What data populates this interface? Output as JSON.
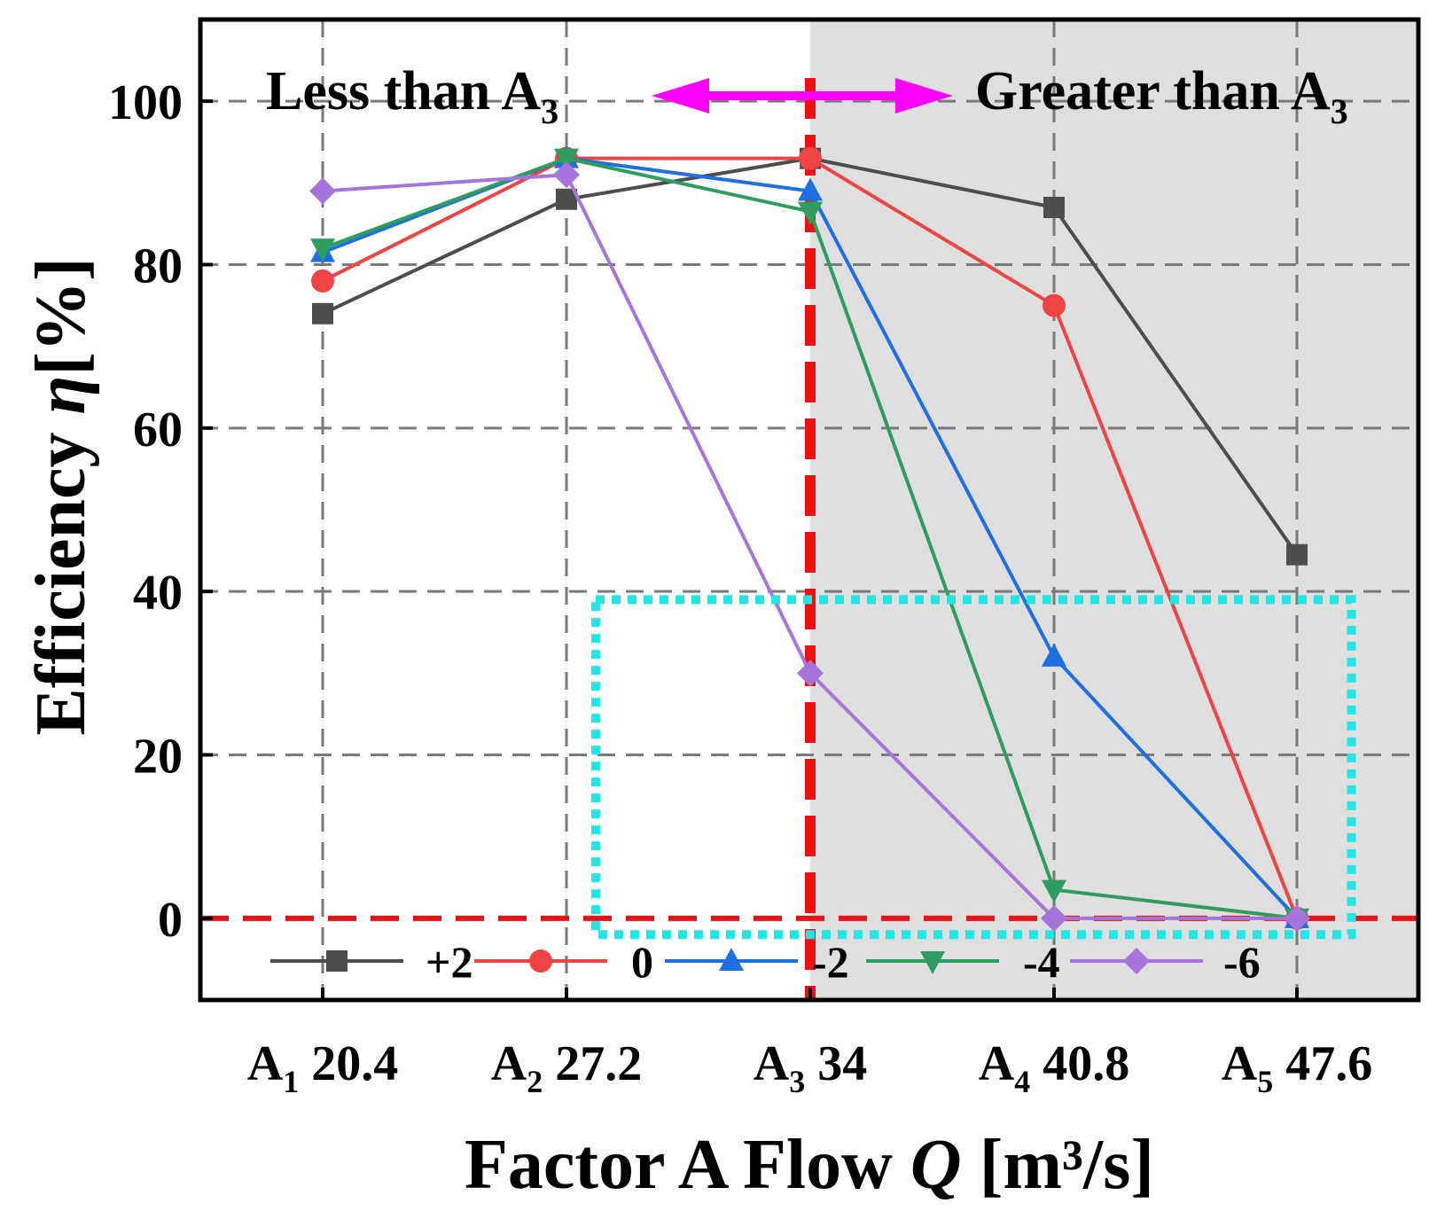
{
  "chart_data": {
    "type": "line",
    "title": "",
    "xlabel": {
      "text": "Factor A Flow ",
      "var": "Q",
      "unit": " [m³/s]"
    },
    "ylabel": {
      "text": "Efficiency ",
      "var": "η",
      "unit": "[%]"
    },
    "ylim": [
      -10,
      110
    ],
    "yticks": [
      0,
      20,
      40,
      60,
      80,
      100
    ],
    "categories": [
      {
        "letter": "A",
        "sub": "1",
        "value": "20.4"
      },
      {
        "letter": "A",
        "sub": "2",
        "value": "27.2"
      },
      {
        "letter": "A",
        "sub": "3",
        "value": "34"
      },
      {
        "letter": "A",
        "sub": "4",
        "value": "40.8"
      },
      {
        "letter": "A",
        "sub": "5",
        "value": "47.6"
      }
    ],
    "series": [
      {
        "name": "+2",
        "color": "#4d4d4d",
        "marker": "square",
        "values": [
          74,
          88,
          93,
          87,
          44.5
        ]
      },
      {
        "name": "0",
        "color": "#ee4444",
        "marker": "circle",
        "values": [
          78,
          93,
          93,
          75,
          0
        ]
      },
      {
        "name": "-2",
        "color": "#1e6fe0",
        "marker": "triangle-up",
        "values": [
          81.5,
          93,
          89,
          32,
          0
        ]
      },
      {
        "name": "-4",
        "color": "#2e9d5f",
        "marker": "triangle-down",
        "values": [
          82,
          93,
          86.5,
          3.5,
          0
        ]
      },
      {
        "name": "-6",
        "color": "#a675dc",
        "marker": "diamond",
        "values": [
          89,
          91,
          30,
          0,
          0
        ]
      }
    ],
    "grid": true,
    "legend_position": "bottom-inside",
    "annotations": {
      "left_text": {
        "main": "Less than A",
        "sub": "3"
      },
      "right_text": {
        "main": "Greater than A",
        "sub": "3"
      },
      "vertical_line_category": 2,
      "horizontal_line_value": 0,
      "shaded_region": "right of A3",
      "shade_color": "#dfdfdf",
      "reference_line_color": "#ee1111",
      "arrow_color": "#ff00ff",
      "highlight_box": {
        "x_from_category": 1.12,
        "x_to_category": 4.22,
        "y_from": -2,
        "y_to": 39
      },
      "highlight_color": "#22e6e6"
    }
  }
}
